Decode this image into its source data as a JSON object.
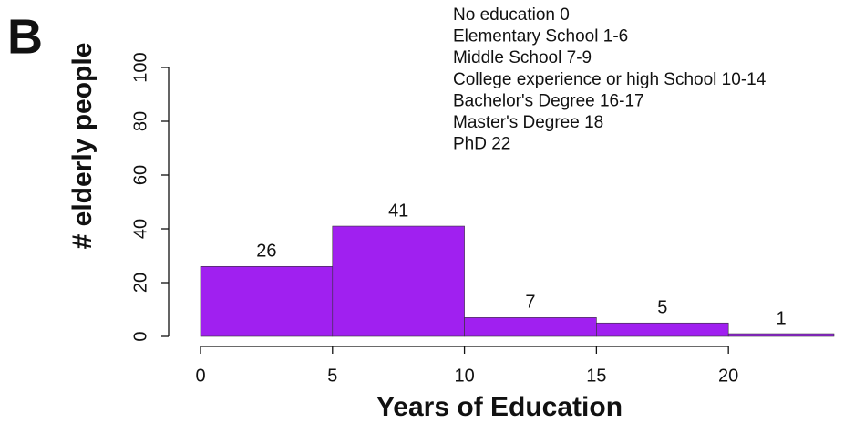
{
  "chart_data": {
    "type": "histogram",
    "panel_label": "B",
    "xlabel": "Years of Education",
    "ylabel": "# elderly people",
    "bins": [
      0,
      5,
      10,
      15,
      20,
      24
    ],
    "values": [
      26,
      41,
      7,
      5,
      1
    ],
    "color": "#a020f0",
    "xlim": [
      0,
      24
    ],
    "xticks": [
      0,
      5,
      10,
      15,
      20
    ],
    "ylim": [
      0,
      100
    ],
    "yticks": [
      0,
      20,
      40,
      60,
      80,
      100
    ],
    "annotations": [
      "No education 0",
      "Elementary School 1-6",
      "Middle School 7-9",
      "College experience or high School 10-14",
      "Bachelor's Degree 16-17",
      "Master's Degree 18",
      "PhD 22"
    ]
  }
}
